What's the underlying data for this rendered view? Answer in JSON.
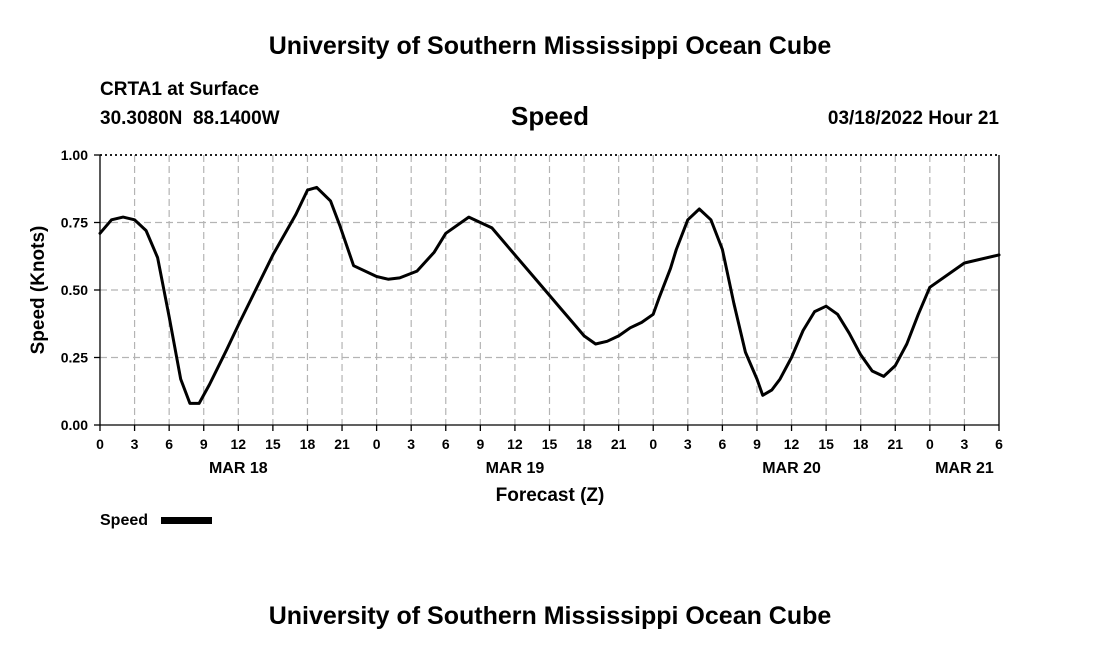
{
  "header": {
    "title": "University of Southern Mississippi Ocean Cube",
    "station": "CRTA1 at Surface",
    "coords": "30.3080N  88.1400W",
    "variable": "Speed",
    "datetime": "03/18/2022 Hour 21"
  },
  "footer": {
    "title": "University of Southern Mississippi Ocean Cube"
  },
  "chart_data": {
    "type": "line",
    "xlabel": "Forecast (Z)",
    "ylabel": "Speed (Knots)",
    "ylim": [
      0,
      1
    ],
    "xlim_hours": [
      0,
      78
    ],
    "yticks": [
      "0.00",
      "0.25",
      "0.50",
      "0.75",
      "1.00"
    ],
    "yticks_values": [
      0,
      0.25,
      0.5,
      0.75,
      1.0
    ],
    "xticks": [
      "0",
      "3",
      "6",
      "9",
      "12",
      "15",
      "18",
      "21",
      "0",
      "3",
      "6",
      "9",
      "12",
      "15",
      "18",
      "21",
      "0",
      "3",
      "6",
      "9",
      "12",
      "15",
      "18",
      "21",
      "0",
      "3",
      "6"
    ],
    "date_labels": [
      {
        "label": "MAR 18",
        "hour": 12
      },
      {
        "label": "MAR 19",
        "hour": 36
      },
      {
        "label": "MAR 20",
        "hour": 60
      },
      {
        "label": "MAR 21",
        "hour": 75
      }
    ],
    "grid": true,
    "legend": [
      {
        "name": "Speed",
        "color": "#000000"
      }
    ],
    "series": [
      {
        "name": "Speed",
        "color": "#000000",
        "x": [
          0,
          1,
          2,
          3,
          4,
          5,
          6,
          7,
          7.8,
          8.6,
          9.5,
          11,
          12,
          15,
          17,
          18,
          18.8,
          20,
          20.8,
          22,
          24,
          25,
          26,
          27.5,
          29,
          30,
          32,
          34,
          36,
          38,
          40,
          41,
          42,
          43,
          44,
          45,
          46,
          47,
          48,
          48.5,
          49.5,
          50,
          51,
          52,
          53,
          54,
          55,
          56,
          57,
          57.5,
          58.3,
          59,
          60,
          61,
          62,
          63,
          64,
          65,
          66,
          67,
          68,
          69,
          70,
          71,
          72,
          75,
          78
        ],
        "y": [
          0.71,
          0.76,
          0.77,
          0.76,
          0.72,
          0.62,
          0.4,
          0.17,
          0.08,
          0.08,
          0.15,
          0.28,
          0.37,
          0.63,
          0.78,
          0.87,
          0.88,
          0.83,
          0.74,
          0.59,
          0.55,
          0.54,
          0.545,
          0.57,
          0.64,
          0.71,
          0.77,
          0.73,
          0.63,
          0.53,
          0.43,
          0.38,
          0.33,
          0.3,
          0.31,
          0.33,
          0.36,
          0.38,
          0.41,
          0.47,
          0.58,
          0.65,
          0.76,
          0.8,
          0.76,
          0.65,
          0.45,
          0.27,
          0.17,
          0.11,
          0.13,
          0.17,
          0.25,
          0.35,
          0.42,
          0.44,
          0.41,
          0.34,
          0.26,
          0.2,
          0.18,
          0.22,
          0.3,
          0.41,
          0.51,
          0.6,
          0.63
        ]
      }
    ]
  }
}
